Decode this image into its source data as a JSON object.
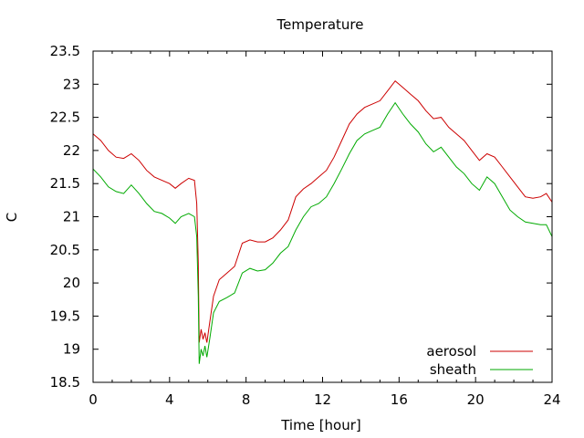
{
  "chart_data": {
    "type": "line",
    "title": "Temperature",
    "xlabel": "Time [hour]",
    "ylabel": "C",
    "xlim": [
      0,
      24
    ],
    "ylim": [
      18.5,
      23.5
    ],
    "xticks": [
      0,
      4,
      8,
      12,
      16,
      20,
      24
    ],
    "yticks": [
      18.5,
      19,
      19.5,
      20,
      20.5,
      21,
      21.5,
      22,
      22.5,
      23,
      23.5
    ],
    "grid": false,
    "legend_position": "bottom-right",
    "series": [
      {
        "name": "aerosol",
        "color": "#cc0000",
        "points": [
          [
            0,
            22.25
          ],
          [
            0.4,
            22.15
          ],
          [
            0.8,
            22.0
          ],
          [
            1.2,
            21.9
          ],
          [
            1.6,
            21.88
          ],
          [
            2.0,
            21.95
          ],
          [
            2.4,
            21.85
          ],
          [
            2.8,
            21.7
          ],
          [
            3.2,
            21.6
          ],
          [
            3.6,
            21.55
          ],
          [
            4.0,
            21.5
          ],
          [
            4.3,
            21.43
          ],
          [
            4.6,
            21.5
          ],
          [
            5.0,
            21.58
          ],
          [
            5.3,
            21.55
          ],
          [
            5.42,
            21.2
          ],
          [
            5.5,
            20.3
          ],
          [
            5.55,
            19.1
          ],
          [
            5.65,
            19.3
          ],
          [
            5.75,
            19.15
          ],
          [
            5.85,
            19.25
          ],
          [
            5.95,
            19.1
          ],
          [
            6.1,
            19.4
          ],
          [
            6.3,
            19.8
          ],
          [
            6.6,
            20.05
          ],
          [
            7.0,
            20.15
          ],
          [
            7.4,
            20.25
          ],
          [
            7.8,
            20.6
          ],
          [
            8.2,
            20.65
          ],
          [
            8.6,
            20.62
          ],
          [
            9.0,
            20.62
          ],
          [
            9.4,
            20.68
          ],
          [
            9.8,
            20.8
          ],
          [
            10.2,
            20.95
          ],
          [
            10.6,
            21.3
          ],
          [
            11.0,
            21.42
          ],
          [
            11.4,
            21.5
          ],
          [
            11.8,
            21.6
          ],
          [
            12.2,
            21.7
          ],
          [
            12.6,
            21.9
          ],
          [
            13.0,
            22.15
          ],
          [
            13.4,
            22.4
          ],
          [
            13.8,
            22.55
          ],
          [
            14.2,
            22.65
          ],
          [
            14.6,
            22.7
          ],
          [
            15.0,
            22.75
          ],
          [
            15.4,
            22.9
          ],
          [
            15.8,
            23.05
          ],
          [
            16.2,
            22.95
          ],
          [
            16.6,
            22.85
          ],
          [
            17.0,
            22.75
          ],
          [
            17.4,
            22.6
          ],
          [
            17.8,
            22.48
          ],
          [
            18.2,
            22.5
          ],
          [
            18.6,
            22.35
          ],
          [
            19.0,
            22.25
          ],
          [
            19.4,
            22.15
          ],
          [
            19.8,
            22.0
          ],
          [
            20.2,
            21.85
          ],
          [
            20.6,
            21.95
          ],
          [
            21.0,
            21.9
          ],
          [
            21.4,
            21.75
          ],
          [
            21.8,
            21.6
          ],
          [
            22.2,
            21.45
          ],
          [
            22.6,
            21.3
          ],
          [
            23.0,
            21.28
          ],
          [
            23.4,
            21.3
          ],
          [
            23.7,
            21.35
          ],
          [
            24,
            21.22
          ]
        ]
      },
      {
        "name": "sheath",
        "color": "#00aa00",
        "points": [
          [
            0,
            21.72
          ],
          [
            0.4,
            21.6
          ],
          [
            0.8,
            21.45
          ],
          [
            1.2,
            21.38
          ],
          [
            1.6,
            21.35
          ],
          [
            2.0,
            21.48
          ],
          [
            2.4,
            21.35
          ],
          [
            2.8,
            21.2
          ],
          [
            3.2,
            21.08
          ],
          [
            3.6,
            21.05
          ],
          [
            4.0,
            20.98
          ],
          [
            4.3,
            20.9
          ],
          [
            4.6,
            21.0
          ],
          [
            5.0,
            21.05
          ],
          [
            5.3,
            21.0
          ],
          [
            5.42,
            20.7
          ],
          [
            5.5,
            19.8
          ],
          [
            5.55,
            18.78
          ],
          [
            5.65,
            19.0
          ],
          [
            5.75,
            18.9
          ],
          [
            5.85,
            19.05
          ],
          [
            5.95,
            18.88
          ],
          [
            6.1,
            19.15
          ],
          [
            6.3,
            19.55
          ],
          [
            6.6,
            19.72
          ],
          [
            7.0,
            19.78
          ],
          [
            7.4,
            19.85
          ],
          [
            7.8,
            20.15
          ],
          [
            8.2,
            20.22
          ],
          [
            8.6,
            20.18
          ],
          [
            9.0,
            20.2
          ],
          [
            9.4,
            20.3
          ],
          [
            9.8,
            20.45
          ],
          [
            10.2,
            20.55
          ],
          [
            10.6,
            20.8
          ],
          [
            11.0,
            21.0
          ],
          [
            11.4,
            21.15
          ],
          [
            11.8,
            21.2
          ],
          [
            12.2,
            21.3
          ],
          [
            12.6,
            21.5
          ],
          [
            13.0,
            21.72
          ],
          [
            13.4,
            21.95
          ],
          [
            13.8,
            22.15
          ],
          [
            14.2,
            22.25
          ],
          [
            14.6,
            22.3
          ],
          [
            15.0,
            22.35
          ],
          [
            15.4,
            22.55
          ],
          [
            15.8,
            22.72
          ],
          [
            16.2,
            22.55
          ],
          [
            16.6,
            22.4
          ],
          [
            17.0,
            22.28
          ],
          [
            17.4,
            22.1
          ],
          [
            17.8,
            21.98
          ],
          [
            18.2,
            22.05
          ],
          [
            18.6,
            21.9
          ],
          [
            19.0,
            21.75
          ],
          [
            19.4,
            21.65
          ],
          [
            19.8,
            21.5
          ],
          [
            20.2,
            21.4
          ],
          [
            20.6,
            21.6
          ],
          [
            21.0,
            21.5
          ],
          [
            21.4,
            21.3
          ],
          [
            21.8,
            21.1
          ],
          [
            22.2,
            21.0
          ],
          [
            22.6,
            20.92
          ],
          [
            23.0,
            20.9
          ],
          [
            23.4,
            20.88
          ],
          [
            23.7,
            20.88
          ],
          [
            24,
            20.7
          ]
        ]
      }
    ]
  }
}
